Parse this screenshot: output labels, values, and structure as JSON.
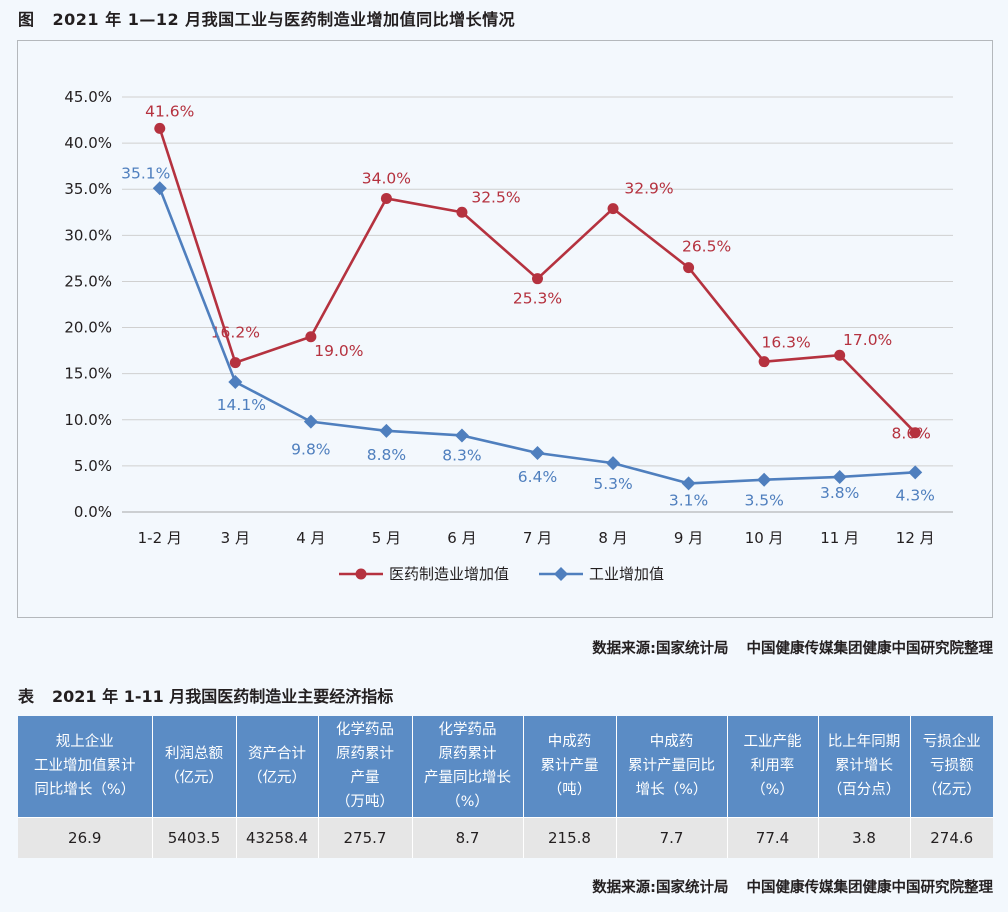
{
  "figure": {
    "label": "图",
    "title": "2021 年 1—12 月我国工业与医药制造业增加值同比增长情况"
  },
  "chart_data": {
    "type": "line",
    "categories": [
      "1-2 月",
      "3 月",
      "4 月",
      "5 月",
      "6 月",
      "7 月",
      "8 月",
      "9 月",
      "10 月",
      "11 月",
      "12 月"
    ],
    "series": [
      {
        "name": "医药制造业增加值",
        "color": "#b5323f",
        "marker": "circle",
        "values": [
          41.6,
          16.2,
          19.0,
          34.0,
          32.5,
          25.3,
          32.9,
          26.5,
          16.3,
          17.0,
          8.6
        ],
        "labels": [
          "41.6%",
          "16.2%",
          "19.0%",
          "34.0%",
          "32.5%",
          "25.3%",
          "32.9%",
          "26.5%",
          "16.3%",
          "17.0%",
          "8.6%"
        ]
      },
      {
        "name": "工业增加值",
        "color": "#4f7fbe",
        "marker": "diamond",
        "values": [
          35.1,
          14.1,
          9.8,
          8.8,
          8.3,
          6.4,
          5.3,
          3.1,
          3.5,
          3.8,
          4.3
        ],
        "labels": [
          "35.1%",
          "14.1%",
          "9.8%",
          "8.8%",
          "8.3%",
          "6.4%",
          "5.3%",
          "3.1%",
          "3.5%",
          "3.8%",
          "4.3%"
        ]
      }
    ],
    "ylim": [
      0,
      45
    ],
    "yticks": [
      "0.0%",
      "5.0%",
      "10.0%",
      "15.0%",
      "20.0%",
      "25.0%",
      "30.0%",
      "35.0%",
      "40.0%",
      "45.0%"
    ],
    "ytick_values": [
      0,
      5,
      10,
      15,
      20,
      25,
      30,
      35,
      40,
      45
    ],
    "grid": true,
    "legend_position": "bottom"
  },
  "source_line": {
    "left": "数据来源:国家统计局",
    "right": "中国健康传媒集团健康中国研究院整理"
  },
  "table": {
    "label": "表",
    "title": "2021 年 1-11 月我国医药制造业主要经济指标",
    "headers": [
      "规上企业\n工业增加值累计\n同比增长（%）",
      "利润总额\n（亿元）",
      "资产合计\n（亿元）",
      "化学药品\n原药累计\n产量\n（万吨）",
      "化学药品\n原药累计\n产量同比增长\n（%）",
      "中成药\n累计产量\n（吨）",
      "中成药\n累计产量同比\n增长（%）",
      "工业产能\n利用率\n（%）",
      "比上年同期\n累计增长\n（百分点）",
      "亏损企业\n亏损额\n（亿元）"
    ],
    "values": [
      "26.9",
      "5403.5",
      "43258.4",
      "275.7",
      "8.7",
      "215.8",
      "7.7",
      "77.4",
      "3.8",
      "274.6"
    ]
  },
  "table_source": {
    "left": "数据来源:国家统计局",
    "right": "中国健康传媒集团健康中国研究院整理"
  }
}
